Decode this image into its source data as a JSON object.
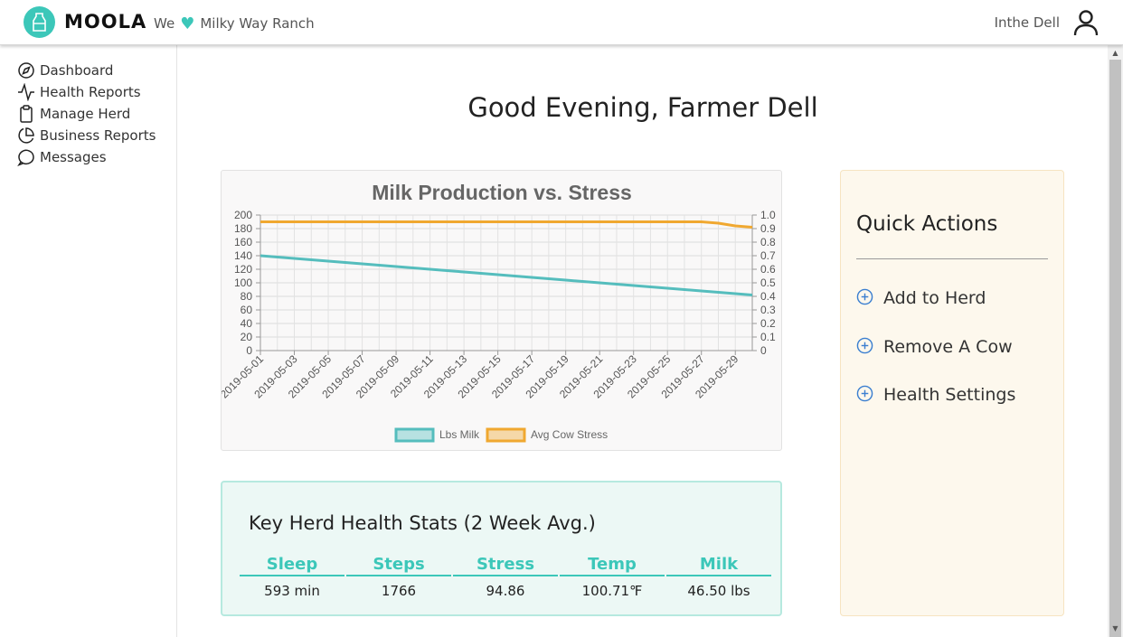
{
  "header": {
    "logo_text": "MOOLA",
    "tagline_prefix": "We",
    "ranch_name": "Milky Way Ranch",
    "user_name": "Inthe Dell"
  },
  "sidebar": {
    "items": [
      {
        "label": "Dashboard",
        "icon": "compass-icon"
      },
      {
        "label": "Health Reports",
        "icon": "activity-icon"
      },
      {
        "label": "Manage Herd",
        "icon": "clipboard-icon"
      },
      {
        "label": "Business Reports",
        "icon": "pie-chart-icon"
      },
      {
        "label": "Messages",
        "icon": "message-circle-icon"
      }
    ]
  },
  "main": {
    "greeting": "Good Evening, Farmer Dell"
  },
  "chart_data": {
    "type": "line",
    "title": "Milk Production vs. Stress",
    "x": [
      "2019-05-01",
      "2019-05-02",
      "2019-05-03",
      "2019-05-04",
      "2019-05-05",
      "2019-05-06",
      "2019-05-07",
      "2019-05-08",
      "2019-05-09",
      "2019-05-10",
      "2019-05-11",
      "2019-05-12",
      "2019-05-13",
      "2019-05-14",
      "2019-05-15",
      "2019-05-16",
      "2019-05-17",
      "2019-05-18",
      "2019-05-19",
      "2019-05-20",
      "2019-05-21",
      "2019-05-22",
      "2019-05-23",
      "2019-05-24",
      "2019-05-25",
      "2019-05-26",
      "2019-05-27",
      "2019-05-28",
      "2019-05-29",
      "2019-05-30"
    ],
    "x_tick_labels": [
      "2019-05-01",
      "2019-05-03",
      "2019-05-05",
      "2019-05-07",
      "2019-05-09",
      "2019-05-11",
      "2019-05-13",
      "2019-05-15",
      "2019-05-17",
      "2019-05-19",
      "2019-05-21",
      "2019-05-23",
      "2019-05-25",
      "2019-05-27",
      "2019-05-29"
    ],
    "y_left_ticks": [
      "0",
      "20",
      "40",
      "60",
      "80",
      "100",
      "120",
      "140",
      "160",
      "180",
      "200"
    ],
    "y_right_ticks": [
      "0",
      "0.1",
      "0.2",
      "0.3",
      "0.4",
      "0.5",
      "0.6",
      "0.7",
      "0.8",
      "0.9",
      "1.0"
    ],
    "ylim_left": [
      0,
      200
    ],
    "ylim_right": [
      0,
      1.0
    ],
    "series": [
      {
        "name": "Lbs Milk",
        "axis": "left",
        "color": "#55bdbd",
        "values": [
          140,
          138,
          136,
          134,
          132,
          130,
          128,
          126,
          124,
          122,
          120,
          118,
          116,
          114,
          112,
          110,
          108,
          106,
          104,
          102,
          100,
          98,
          96,
          94,
          92,
          90,
          88,
          86,
          84,
          82
        ]
      },
      {
        "name": "Avg Cow Stress",
        "axis": "right",
        "color": "#f0a830",
        "values": [
          0.95,
          0.95,
          0.95,
          0.95,
          0.95,
          0.95,
          0.95,
          0.95,
          0.95,
          0.95,
          0.95,
          0.95,
          0.95,
          0.95,
          0.95,
          0.95,
          0.95,
          0.95,
          0.95,
          0.95,
          0.95,
          0.95,
          0.95,
          0.95,
          0.95,
          0.95,
          0.95,
          0.94,
          0.92,
          0.91
        ]
      }
    ],
    "legend_position": "bottom"
  },
  "stats": {
    "title": "Key Herd Health Stats (2 Week Avg.)",
    "columns": [
      {
        "head": "Sleep",
        "value": "593 min"
      },
      {
        "head": "Steps",
        "value": "1766"
      },
      {
        "head": "Stress",
        "value": "94.86"
      },
      {
        "head": "Temp",
        "value": "100.71℉"
      },
      {
        "head": "Milk",
        "value": "46.50 lbs"
      }
    ]
  },
  "quick_actions": {
    "title": "Quick Actions",
    "items": [
      {
        "label": "Add to Herd"
      },
      {
        "label": "Remove A Cow"
      },
      {
        "label": "Health Settings"
      }
    ]
  },
  "colors": {
    "brand": "#3cc7b9",
    "milk_line": "#55bdbd",
    "stress_line": "#f0a830"
  }
}
